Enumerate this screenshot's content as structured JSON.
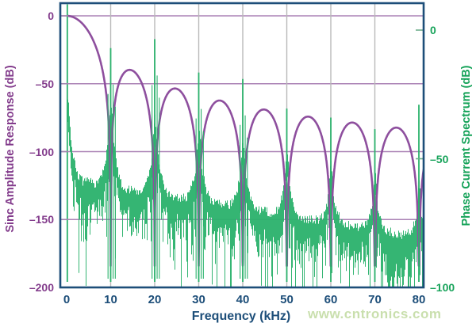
{
  "watermark": {
    "text": "www.cntronics.com",
    "color": "#c9dfad"
  },
  "chart_data": {
    "type": "line",
    "title": "",
    "x_axis": {
      "label": "Frequency (kHz)",
      "min": 0,
      "max": 80,
      "ticks": [
        0,
        10,
        20,
        30,
        40,
        50,
        60,
        70,
        80
      ],
      "color": "#1d4e79"
    },
    "y_axis_left": {
      "label": "Sinc Amplitude Response (dB)",
      "min": -200,
      "max": 0,
      "ticks": [
        0,
        -50,
        -100,
        -150,
        -200
      ],
      "color": "#833c8c"
    },
    "y_axis_right": {
      "label": "Phase Current Spectrum (dB)",
      "min": -100,
      "max": 0,
      "ticks": [
        0,
        -50,
        -100
      ],
      "color": "#17a35a"
    },
    "grid": {
      "horizontal_at_left_db": [
        0,
        -50,
        -100,
        -150
      ],
      "vertical_at_khz": [
        10,
        20,
        30,
        40,
        50,
        60,
        70
      ],
      "h_color": "#ab82b5",
      "v_color": "#b9b9b9"
    },
    "series": [
      {
        "name": "Sinc Amplitude Response",
        "axis": "left",
        "color": "#8e4f9e",
        "model": "sinc3",
        "formula_db": "60*log10(|sin(pi*f/10)/(pi*f/10)|)",
        "null_spacing_khz": 10,
        "nulls_khz": [
          10,
          20,
          30,
          40,
          50,
          60,
          70,
          80
        ],
        "clip_db": -184,
        "sidelobe_peaks": [
          {
            "f_khz": 14.5,
            "db": -39.8
          },
          {
            "f_khz": 24.7,
            "db": -53.5
          },
          {
            "f_khz": 34.8,
            "db": -62.4
          },
          {
            "f_khz": 44.8,
            "db": -69.0
          },
          {
            "f_khz": 54.9,
            "db": -74.2
          },
          {
            "f_khz": 64.9,
            "db": -78.5
          },
          {
            "f_khz": 74.9,
            "db": -82.1
          }
        ]
      },
      {
        "name": "Phase Current Spectrum",
        "axis": "right",
        "color": "#2bb26c",
        "model": "noise_plus_harmonics",
        "harmonics": [
          {
            "f_khz": 0.15,
            "db": 10,
            "clipped_at_top": true
          },
          {
            "f_khz": 10,
            "db": -7
          },
          {
            "f_khz": 20,
            "db": -3.5
          },
          {
            "f_khz": 30,
            "db": -16.5
          },
          {
            "f_khz": 40,
            "db": -19
          },
          {
            "f_khz": 50,
            "db": -30.5
          },
          {
            "f_khz": 60,
            "db": -34
          },
          {
            "f_khz": 70,
            "db": -38.5
          },
          {
            "f_khz": 80,
            "db": -29
          }
        ],
        "noise_floor_left_db": {
          "at_0_khz": -120,
          "at_80_khz": -163,
          "skirt_width_khz": 2.5,
          "whisker_depth_max_db": 55
        }
      }
    ]
  }
}
